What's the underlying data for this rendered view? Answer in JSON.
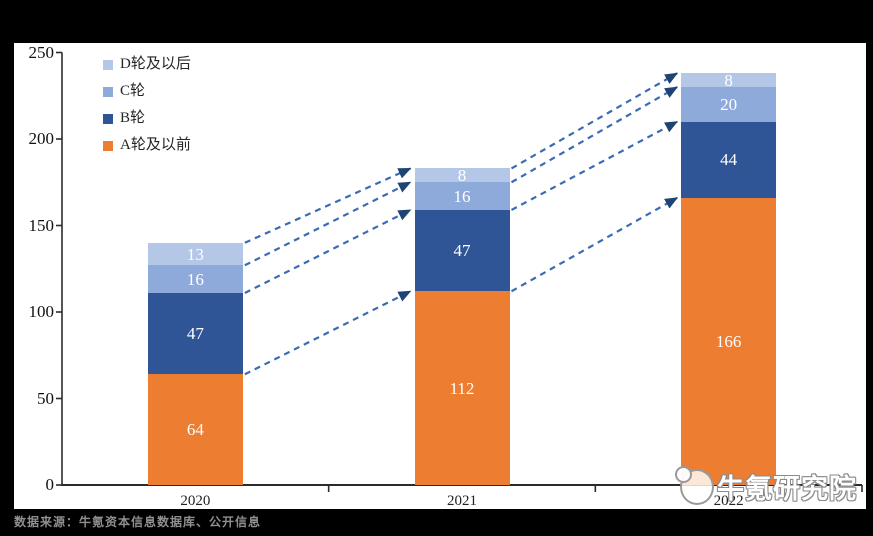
{
  "chart_data": {
    "type": "bar",
    "variant": "stacked-column",
    "categories": [
      "2020",
      "2021",
      "2022"
    ],
    "series": [
      {
        "name": "A轮及以前",
        "color": "#ED7D31",
        "values": [
          64,
          112,
          166
        ]
      },
      {
        "name": "B轮",
        "color": "#2F5597",
        "values": [
          47,
          47,
          44
        ]
      },
      {
        "name": "C轮",
        "color": "#8EAADB",
        "values": [
          16,
          16,
          20
        ]
      },
      {
        "name": "D轮及以后",
        "color": "#B4C7E7",
        "values": [
          13,
          8,
          8
        ]
      }
    ],
    "legend_entries_top_to_bottom": [
      "D轮及以后",
      "C轮",
      "B轮",
      "A轮及以前"
    ],
    "legend_position": "top-left",
    "ylim": [
      0,
      250
    ],
    "yticks": [
      "0",
      "50",
      "100",
      "150",
      "200",
      "250"
    ],
    "value_labels_color": "#FFFFFF",
    "annotations": "dashed arrows connect tops of corresponding segments between consecutive years",
    "grid": "off"
  },
  "footer": {
    "source_text": "数据来源：牛氪资本信息数据库、公开信息"
  },
  "watermark": {
    "text": "牛氪研究院"
  },
  "style": {
    "arrow_dash_color": "#3A6BB4",
    "arrow_head_color": "#1D4473",
    "axis_color": "#2b2b2b",
    "background": "#000000",
    "plot_background": "#FFFFFF"
  }
}
